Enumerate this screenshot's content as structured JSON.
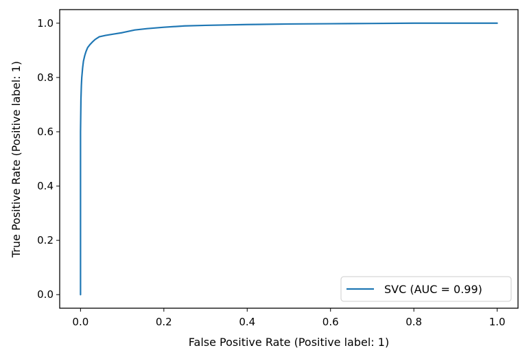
{
  "chart_data": {
    "type": "line",
    "title": "",
    "xlabel": "False Positive Rate (Positive label: 1)",
    "ylabel": "True Positive Rate (Positive label: 1)",
    "xlim": [
      -0.05,
      1.05
    ],
    "ylim": [
      -0.05,
      1.05
    ],
    "xticks": [
      0.0,
      0.2,
      0.4,
      0.6,
      0.8,
      1.0
    ],
    "yticks": [
      0.0,
      0.2,
      0.4,
      0.6,
      0.8,
      1.0
    ],
    "xtick_labels": [
      "0.0",
      "0.2",
      "0.4",
      "0.6",
      "0.8",
      "1.0"
    ],
    "ytick_labels": [
      "0.0",
      "0.2",
      "0.4",
      "0.6",
      "0.8",
      "1.0"
    ],
    "grid": false,
    "legend_position": "lower-right",
    "series": [
      {
        "name": "SVC (AUC = 0.99)",
        "color": "#1f77b4",
        "x": [
          0.0,
          0.0,
          0.001,
          0.002,
          0.003,
          0.005,
          0.007,
          0.01,
          0.013,
          0.017,
          0.022,
          0.028,
          0.035,
          0.045,
          0.06,
          0.08,
          0.1,
          0.13,
          0.16,
          0.2,
          0.25,
          0.3,
          0.4,
          0.5,
          0.6,
          0.7,
          0.8,
          0.9,
          1.0
        ],
        "y": [
          0.0,
          0.6,
          0.72,
          0.77,
          0.8,
          0.835,
          0.86,
          0.88,
          0.895,
          0.91,
          0.92,
          0.93,
          0.94,
          0.95,
          0.955,
          0.96,
          0.965,
          0.975,
          0.98,
          0.985,
          0.99,
          0.992,
          0.995,
          0.997,
          0.998,
          0.999,
          1.0,
          1.0,
          1.0
        ]
      }
    ]
  }
}
